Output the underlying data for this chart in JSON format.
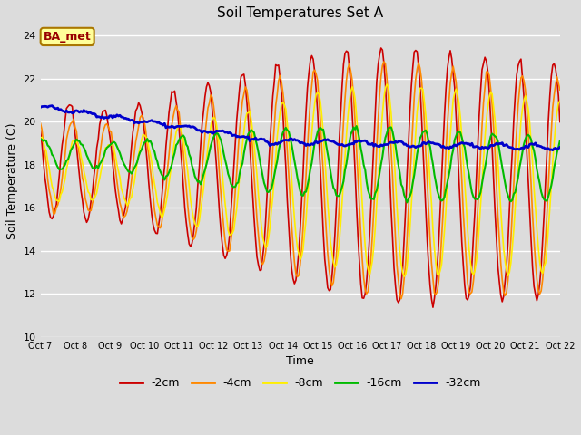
{
  "title": "Soil Temperatures Set A",
  "xlabel": "Time",
  "ylabel": "Soil Temperature (C)",
  "ylim": [
    10,
    24.5
  ],
  "xlim": [
    0,
    360
  ],
  "background_color": "#dcdcdc",
  "plot_bg_color": "#dcdcdc",
  "annotation_label": "BA_met",
  "annotation_bg": "#ffff99",
  "annotation_border": "#aa7700",
  "annotation_text_color": "#990000",
  "tick_labels": [
    "Oct 7",
    "Oct 8",
    "Oct 9",
    "Oct 10",
    "Oct 11",
    "Oct 12",
    "Oct 13",
    "Oct 14",
    "Oct 15",
    "Oct 16",
    "Oct 17",
    "Oct 18",
    "Oct 19",
    "Oct 20",
    "Oct 21",
    "Oct 22"
  ],
  "tick_positions": [
    0,
    24,
    48,
    72,
    96,
    120,
    144,
    168,
    192,
    216,
    240,
    264,
    288,
    312,
    336,
    360
  ],
  "series_colors": [
    "#cc0000",
    "#ff8800",
    "#ffee00",
    "#00bb00",
    "#0000cc"
  ],
  "series_labels": [
    "-2cm",
    "-4cm",
    "-8cm",
    "-16cm",
    "-32cm"
  ],
  "series_widths": [
    1.2,
    1.2,
    1.2,
    1.5,
    2.0
  ],
  "yticks": [
    10,
    12,
    14,
    16,
    18,
    20,
    22,
    24
  ],
  "grid_color": "#ffffff",
  "n_points": 361
}
